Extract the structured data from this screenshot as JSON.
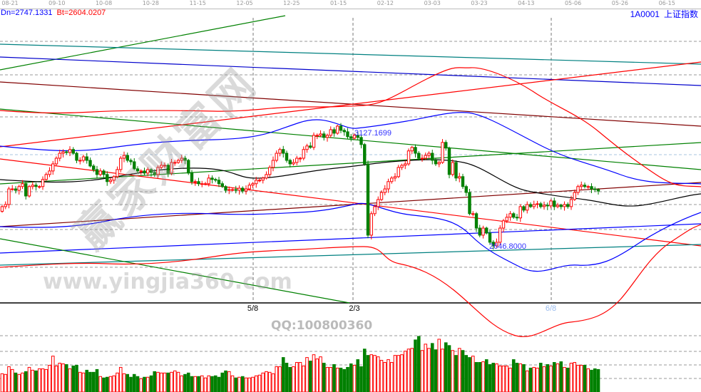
{
  "header": {
    "dn_label": "Dn=2747.1331",
    "bt_label": "Bt=2604.0207",
    "code": "1A0001",
    "name": "上证指数",
    "colors": {
      "dn": "#0000ff",
      "bt": "#ff0000"
    }
  },
  "watermark": {
    "cn": "赢家财富网",
    "url": "www.yingjia360.com",
    "qq": "QQ:100800360"
  },
  "chart_data": {
    "type": "candlestick",
    "title": "",
    "x_tick_labels": [
      "08-21",
      "09-10",
      "10-08",
      "10-28",
      "11-15",
      "12-05",
      "12-25",
      "01-15",
      "02-12",
      "03-03",
      "03-23",
      "04-13",
      "05-06",
      "05-26",
      "06-15"
    ],
    "markers": [
      {
        "label": "5/8",
        "index": 74,
        "color": "#000000"
      },
      {
        "label": "2/3",
        "index": 104,
        "color": "#000000"
      },
      {
        "label": "6/8",
        "index": 162,
        "color": "#99bbee"
      }
    ],
    "annotations": [
      {
        "text": "3127.1699",
        "value": 3127.1699,
        "index": 104
      },
      {
        "text": "2646.8000",
        "value": 2646.8,
        "index": 145
      }
    ],
    "ylim": [
      2408,
      3646
    ],
    "grid": true,
    "colors": {
      "up": "#ff0000",
      "down": "#008000"
    },
    "close": [
      2816,
      2825,
      2891,
      2891,
      2885,
      2901,
      2913,
      2861,
      2901,
      2907,
      2901,
      2901,
      2931,
      2952,
      2967,
      2997,
      3021,
      3042,
      3048,
      3045,
      3058,
      3042,
      3012,
      3012,
      3027,
      3012,
      2988,
      2973,
      2952,
      2967,
      2952,
      2922,
      2928,
      2943,
      2973,
      3021,
      3033,
      3012,
      3006,
      2976,
      2967,
      2967,
      2958,
      2973,
      2961,
      2952,
      2982,
      2991,
      2991,
      2958,
      3003,
      3003,
      3012,
      3021,
      3012,
      2958,
      2922,
      2922,
      2913,
      2913,
      2913,
      2937,
      2931,
      2928,
      2913,
      2901,
      2885,
      2888,
      2888,
      2885,
      2894,
      2882,
      2891,
      2907,
      2913,
      2928,
      2928,
      2937,
      2952,
      2982,
      3012,
      3042,
      3058,
      3042,
      3012,
      2997,
      3003,
      3021,
      3021,
      3058,
      3073,
      3067,
      3118,
      3118,
      3124,
      3109,
      3118,
      3142,
      3127,
      3157,
      3139,
      3133,
      3112,
      3106,
      3118,
      3109,
      3079,
      2997,
      2695,
      2786,
      2816,
      2846,
      2876,
      2891,
      2922,
      2937,
      2943,
      2982,
      2991,
      2997,
      3052,
      3067,
      3042,
      3021,
      3021,
      3033,
      3042,
      3012,
      2997,
      3003,
      3088,
      3064,
      2952,
      3003,
      2937,
      2943,
      2901,
      2876,
      2786,
      2786,
      2725,
      2695,
      2725,
      2704,
      2665,
      2650,
      2665,
      2725,
      2756,
      2771,
      2786,
      2771,
      2768,
      2816,
      2801,
      2825,
      2816,
      2825,
      2828,
      2816,
      2822,
      2819,
      2840,
      2816,
      2822,
      2816,
      2825,
      2816,
      2846,
      2876,
      2901,
      2907,
      2901,
      2901,
      2891,
      2888,
      2882
    ],
    "volume": [
      26,
      25,
      36,
      32,
      27,
      25,
      27,
      29,
      35,
      31,
      30,
      33,
      33,
      32,
      38,
      51,
      37,
      41,
      40,
      39,
      33,
      37,
      38,
      28,
      27,
      31,
      28,
      28,
      32,
      22,
      20,
      21,
      22,
      23,
      27,
      35,
      26,
      25,
      21,
      25,
      22,
      19,
      21,
      21,
      23,
      29,
      28,
      27,
      27,
      27,
      28,
      30,
      28,
      23,
      25,
      27,
      22,
      22,
      22,
      23,
      20,
      23,
      22,
      23,
      21,
      27,
      30,
      29,
      23,
      20,
      21,
      22,
      20,
      20,
      21,
      23,
      24,
      27,
      29,
      28,
      26,
      36,
      36,
      49,
      41,
      35,
      36,
      42,
      42,
      37,
      49,
      44,
      53,
      47,
      50,
      41,
      35,
      35,
      39,
      34,
      34,
      32,
      35,
      40,
      38,
      46,
      36,
      61,
      52,
      53,
      52,
      50,
      45,
      42,
      46,
      42,
      52,
      52,
      53,
      58,
      61,
      62,
      74,
      79,
      59,
      68,
      62,
      69,
      60,
      75,
      61,
      70,
      66,
      59,
      52,
      62,
      59,
      52,
      49,
      51,
      42,
      42,
      43,
      46,
      39,
      41,
      40,
      37,
      37,
      37,
      34,
      46,
      41,
      40,
      39,
      30,
      34,
      35,
      34,
      41,
      36,
      39,
      37,
      42,
      40,
      43,
      35,
      34,
      41,
      42,
      38,
      38,
      38,
      33,
      31,
      33,
      32
    ]
  }
}
